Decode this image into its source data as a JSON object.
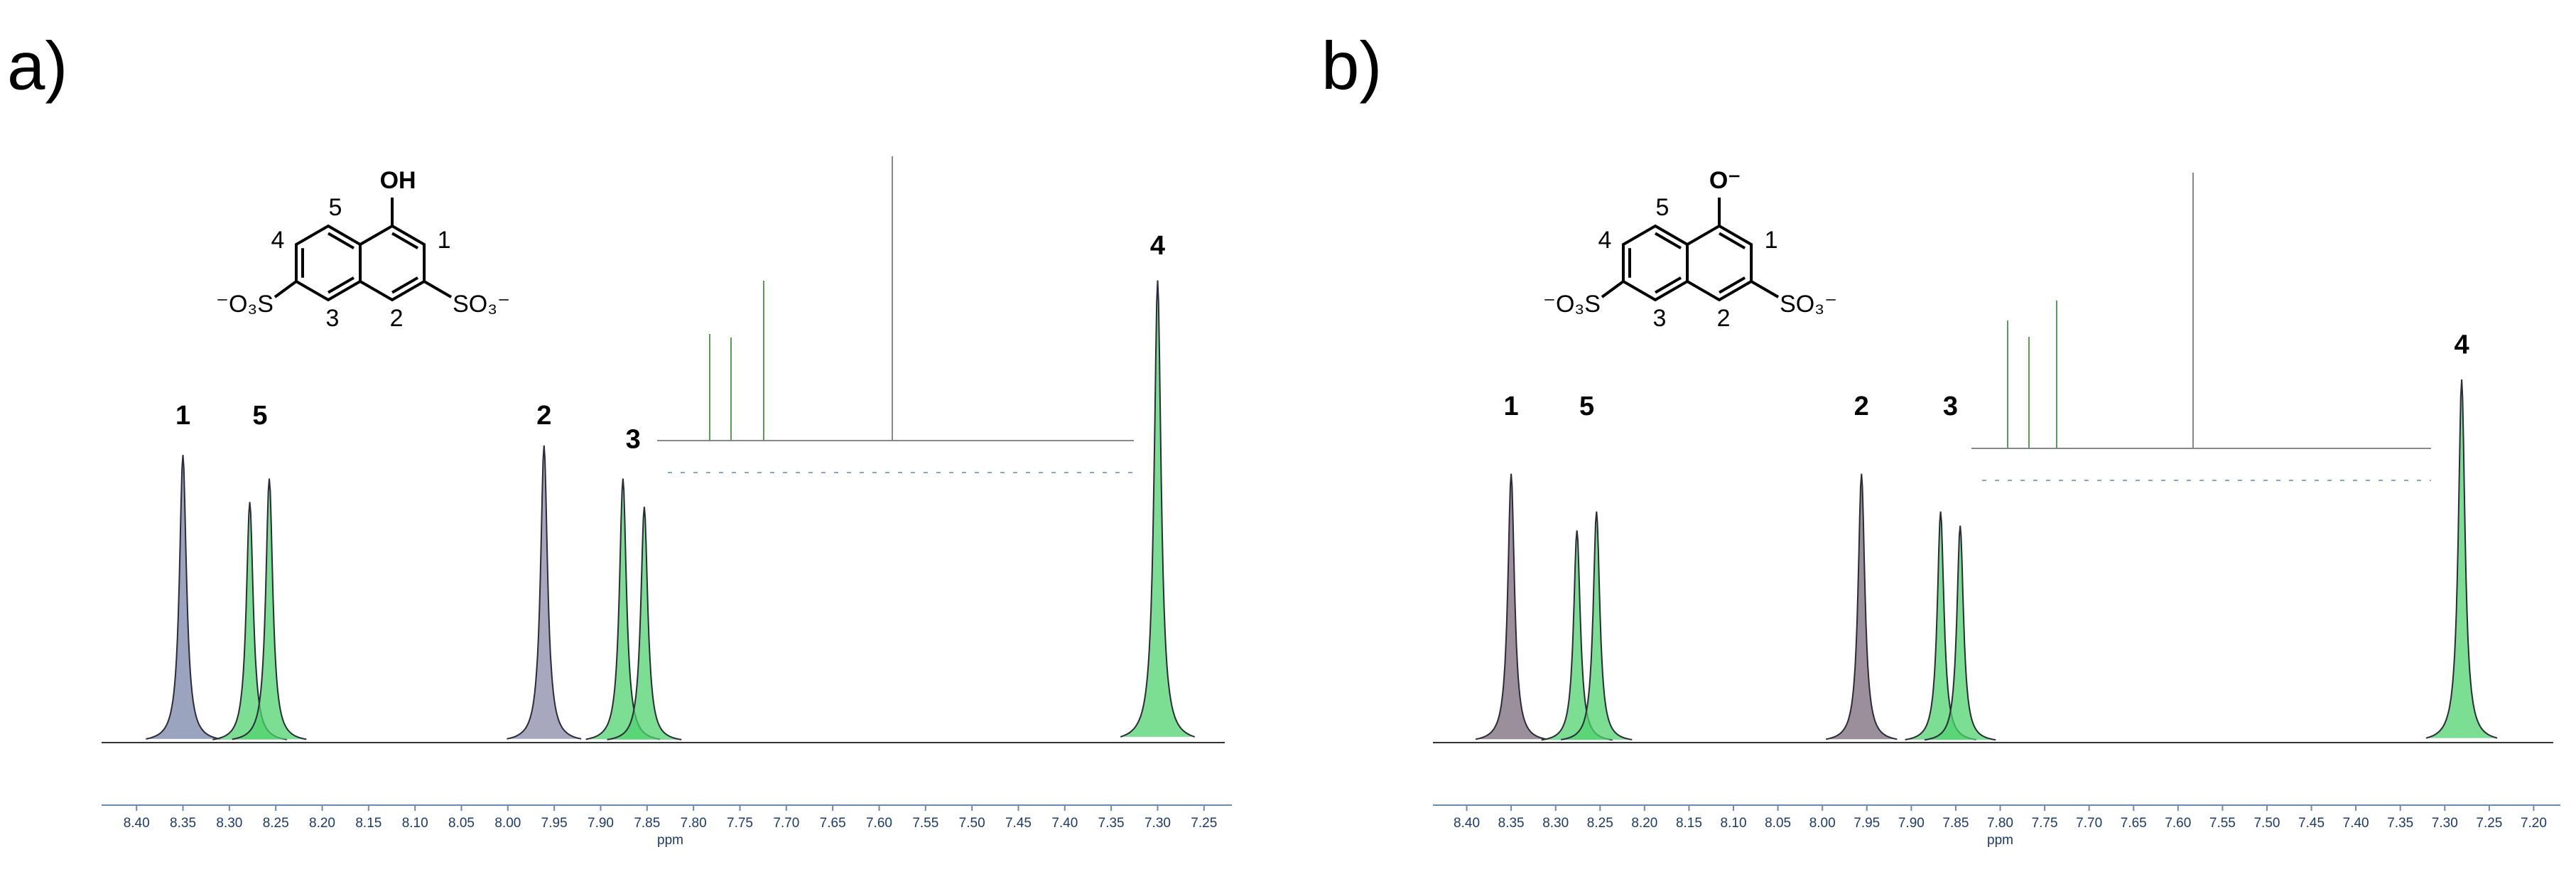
{
  "chart_data": [
    {
      "type": "spectrum",
      "panel_label": "a)",
      "x_label": "ppm",
      "x": [
        8.35,
        8.278,
        8.257,
        7.961,
        7.876,
        7.853,
        7.3
      ],
      "values": [
        61,
        51,
        56,
        63,
        56,
        50,
        98
      ],
      "colors": [
        "#7a86a8",
        "#4fd36e",
        "#4fd36e",
        "#8a8aa8",
        "#4fd36e",
        "#4fd36e",
        "#4fd36e"
      ],
      "xlim": [
        8.43,
        7.22
      ],
      "ylim": [
        0,
        110
      ],
      "xticks": [
        {
          "value": 8.4,
          "label": "8.40"
        },
        8.35,
        {
          "value": 8.3,
          "label": "8.30"
        },
        8.25,
        {
          "value": 8.2,
          "label": "8.20"
        },
        8.15,
        {
          "value": 8.1,
          "label": "8.10"
        },
        8.05,
        {
          "value": 8.0,
          "label": "8.00"
        },
        7.95,
        {
          "value": 7.9,
          "label": "7.90"
        },
        7.85,
        {
          "value": 7.8,
          "label": "7.80"
        },
        7.75,
        {
          "value": 7.7,
          "label": "7.70"
        },
        7.65,
        {
          "value": 7.6,
          "label": "7.60"
        },
        7.55,
        {
          "value": 7.5,
          "label": "7.50"
        },
        7.45,
        {
          "value": 7.4,
          "label": "7.40"
        },
        7.35,
        {
          "value": 7.3,
          "label": "7.30"
        },
        7.25
      ],
      "annotations": [
        {
          "text": "1",
          "x": 8.35,
          "y": 69
        },
        {
          "text": "5",
          "x": 8.267,
          "y": 69
        },
        {
          "text": "2",
          "x": 7.961,
          "y": 69
        },
        {
          "text": "3",
          "x": 7.865,
          "y": 64
        },
        {
          "text": "4",
          "x": 7.3,
          "y": 105
        }
      ],
      "structure": {
        "substituent": "OH",
        "left_group": "⁻O₃S",
        "right_group": "SO₃⁻",
        "positions": [
          "1",
          "2",
          "3",
          "4",
          "5"
        ]
      }
    },
    {
      "type": "spectrum",
      "panel_label": "b)",
      "x_label": "ppm",
      "x": [
        8.35,
        8.276,
        8.254,
        7.956,
        7.867,
        7.845,
        7.281
      ],
      "values": [
        57,
        45,
        49,
        57,
        49,
        46,
        77
      ],
      "colors": [
        "#7a6a7a",
        "#4fd36e",
        "#4fd36e",
        "#7a6a7a",
        "#4fd36e",
        "#4fd36e",
        "#4fd36e"
      ],
      "xlim": [
        8.43,
        7.17
      ],
      "ylim": [
        0,
        110
      ],
      "xticks": [
        {
          "value": 8.4,
          "label": "8.40"
        },
        8.35,
        {
          "value": 8.3,
          "label": "8.30"
        },
        8.25,
        {
          "value": 8.2,
          "label": "8.20"
        },
        8.15,
        {
          "value": 8.1,
          "label": "8.10"
        },
        8.05,
        {
          "value": 8.0,
          "label": "8.00"
        },
        7.95,
        {
          "value": 7.9,
          "label": "7.90"
        },
        7.85,
        {
          "value": 7.8,
          "label": "7.80"
        },
        7.75,
        {
          "value": 7.7,
          "label": "7.70"
        },
        7.65,
        {
          "value": 7.6,
          "label": "7.60"
        },
        7.55,
        {
          "value": 7.5,
          "label": "7.50"
        },
        7.45,
        {
          "value": 7.4,
          "label": "7.40"
        },
        7.35,
        {
          "value": 7.3,
          "label": "7.30"
        },
        7.25,
        {
          "value": 7.2,
          "label": "7.20"
        }
      ],
      "annotations": [
        {
          "text": "1",
          "x": 8.35,
          "y": 71
        },
        {
          "text": "5",
          "x": 8.265,
          "y": 71
        },
        {
          "text": "2",
          "x": 7.956,
          "y": 71
        },
        {
          "text": "3",
          "x": 7.856,
          "y": 71
        },
        {
          "text": "4",
          "x": 7.281,
          "y": 84
        }
      ],
      "structure": {
        "substituent": "O⁻",
        "left_group": "⁻O₃S",
        "right_group": "SO₃⁻",
        "positions": [
          "1",
          "2",
          "3",
          "4",
          "5"
        ]
      }
    }
  ]
}
